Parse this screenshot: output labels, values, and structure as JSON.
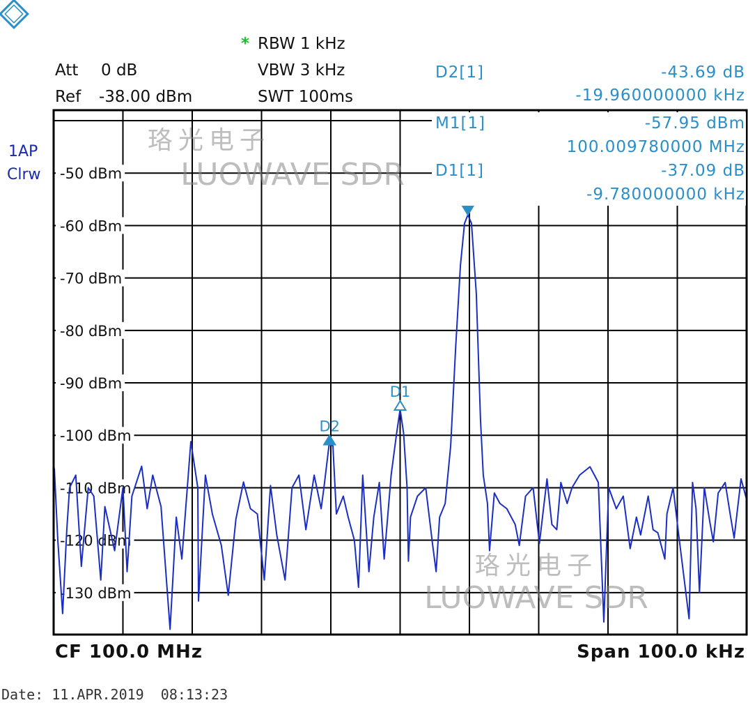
{
  "logo": {
    "text": "R&S",
    "color": "#2a8fc8"
  },
  "header": {
    "rbw_star": "*",
    "rbw": "RBW 1 kHz",
    "vbw": "VBW 3 kHz",
    "swt": "SWT 100ms",
    "att_label": "Att",
    "att_value": "0 dB",
    "ref_label": "Ref",
    "ref_value": "-38.00 dBm"
  },
  "trace_info": {
    "line1": "1AP",
    "line2": "Clrw"
  },
  "marker_table": [
    {
      "label": "D2[1]",
      "value": "-43.69 dB",
      "freq": "-19.960000000 kHz"
    },
    {
      "label": "M1[1]",
      "value": "-57.95 dBm",
      "freq": "100.009780000 MHz"
    },
    {
      "label": "D1[1]",
      "value": "-37.09 dB",
      "freq": "-9.780000000 kHz"
    }
  ],
  "footer": {
    "cf": "CF 100.0 MHz",
    "span": "Span 100.0 kHz",
    "date": "Date: 11.APR.2019  08:13:23"
  },
  "watermark": {
    "cn": "珞光电子",
    "en": "LUOWAVE SDR"
  },
  "colors": {
    "trace": "#1a2ec4",
    "marker": "#2a8fc8",
    "grid": "#000000",
    "star": "#22bb33",
    "trace_info": "#1a2aa8"
  },
  "chart_data": {
    "type": "line",
    "title": "",
    "xlabel": "",
    "ylabel": "",
    "x_unit": "MHz",
    "y_unit": "dBm",
    "xlim": [
      99.95,
      100.05
    ],
    "ylim": [
      -138,
      -38
    ],
    "grid": true,
    "y_ticks": [
      -50,
      -60,
      -70,
      -80,
      -90,
      -100,
      -110,
      -120,
      -130
    ],
    "y_tick_labels": [
      "-50 dBm",
      "-60 dBm",
      "-70 dBm",
      "-80 dBm",
      "-90 dBm",
      "-100 dBm",
      "-110 dBm",
      "-120 dBm",
      "-130 dBm"
    ],
    "markers": [
      {
        "name": "M1",
        "x": 100.00978,
        "y": -57.95,
        "style": "filled-down"
      },
      {
        "name": "D1",
        "x": 100.0,
        "y": -95.04,
        "style": "outline-up"
      },
      {
        "name": "D2",
        "x": 99.98982,
        "y": -101.64,
        "style": "filled-up"
      }
    ],
    "series": [
      {
        "x": [
          99.9501,
          99.9506,
          99.9513,
          99.9519,
          99.9523,
          99.9532,
          99.954,
          99.955,
          99.9558,
          99.9568,
          99.9574,
          99.9588,
          99.96,
          99.9606,
          99.9613,
          99.9627,
          99.9635,
          99.9643,
          99.9655,
          99.9668,
          99.9677,
          99.9685,
          99.9698,
          99.9708,
          99.9709,
          99.9719,
          99.9729,
          99.9742,
          99.9752,
          99.9763,
          99.9774,
          99.9784,
          99.9794,
          99.9804,
          99.9813,
          99.9822,
          99.9834,
          99.9844,
          99.9854,
          99.9864,
          99.9876,
          99.9886,
          99.989,
          99.98975,
          99.9903,
          99.9908,
          99.9918,
          99.9925,
          99.9934,
          99.994,
          99.9946,
          99.9955,
          99.9962,
          99.997,
          99.9977,
          99.9987,
          99.9995,
          100.0,
          100.0005,
          100.001,
          100.0012,
          100.0015,
          100.0025,
          100.0037,
          100.0047,
          100.0052,
          100.0057,
          100.0065,
          100.0073,
          100.008,
          100.0087,
          100.0093,
          100.00978,
          100.0103,
          100.011,
          100.0116,
          100.012,
          100.0126,
          100.0129,
          100.0136,
          100.0144,
          100.0154,
          100.0166,
          100.0172,
          100.0181,
          100.0192,
          100.0201,
          100.0212,
          100.0219,
          100.0226,
          100.0232,
          100.0241,
          100.0248,
          100.0259,
          100.0274,
          100.0286,
          100.0294,
          100.0301,
          100.0312,
          100.0322,
          100.0332,
          100.0341,
          100.0347,
          100.0358,
          100.0365,
          100.0372,
          100.0382,
          100.0385,
          100.0394,
          100.0402,
          100.0417,
          100.0422,
          100.0427,
          100.0432,
          100.0439,
          100.0447,
          100.0452,
          100.0459,
          100.0469,
          100.0477,
          100.0482,
          100.0492,
          100.04995
        ],
        "y": [
          -106.3,
          -120,
          -134,
          -118,
          -110,
          -107.6,
          -125,
          -110,
          -111.6,
          -127.6,
          -113.6,
          -122,
          -110,
          -126,
          -111.6,
          -105.9,
          -114,
          -107.6,
          -113.6,
          -137,
          -115.6,
          -123.6,
          -101.2,
          -110,
          -131.6,
          -107.6,
          -115,
          -121,
          -130.5,
          -116,
          -108.9,
          -114,
          -115,
          -127.6,
          -109.6,
          -119,
          -127.6,
          -110,
          -107.6,
          -118,
          -107.6,
          -114,
          -110,
          -101.8,
          -102,
          -115,
          -111.6,
          -115.6,
          -120,
          -129,
          -107.6,
          -126,
          -115.6,
          -109,
          -123.6,
          -107.6,
          -99.6,
          -95.04,
          -99.6,
          -110,
          -124,
          -115.6,
          -111.6,
          -110,
          -121,
          -126,
          -115.6,
          -113,
          -102,
          -83.6,
          -67.6,
          -59.6,
          -57.95,
          -59.6,
          -73,
          -97,
          -107.6,
          -113,
          -122,
          -111,
          -113,
          -114,
          -117,
          -121,
          -111.6,
          -110,
          -120.6,
          -108.3,
          -117,
          -118,
          -109,
          -113,
          -110,
          -107.6,
          -106,
          -109,
          -135.6,
          -110,
          -114,
          -111.6,
          -121.6,
          -115.6,
          -119,
          -111.6,
          -118,
          -118.6,
          -123.6,
          -115,
          -110,
          -119,
          -135,
          -109,
          -114,
          -130,
          -110,
          -116.6,
          -120.3,
          -111,
          -109,
          -115.6,
          -119.6,
          -108.3,
          -112
        ]
      }
    ]
  }
}
